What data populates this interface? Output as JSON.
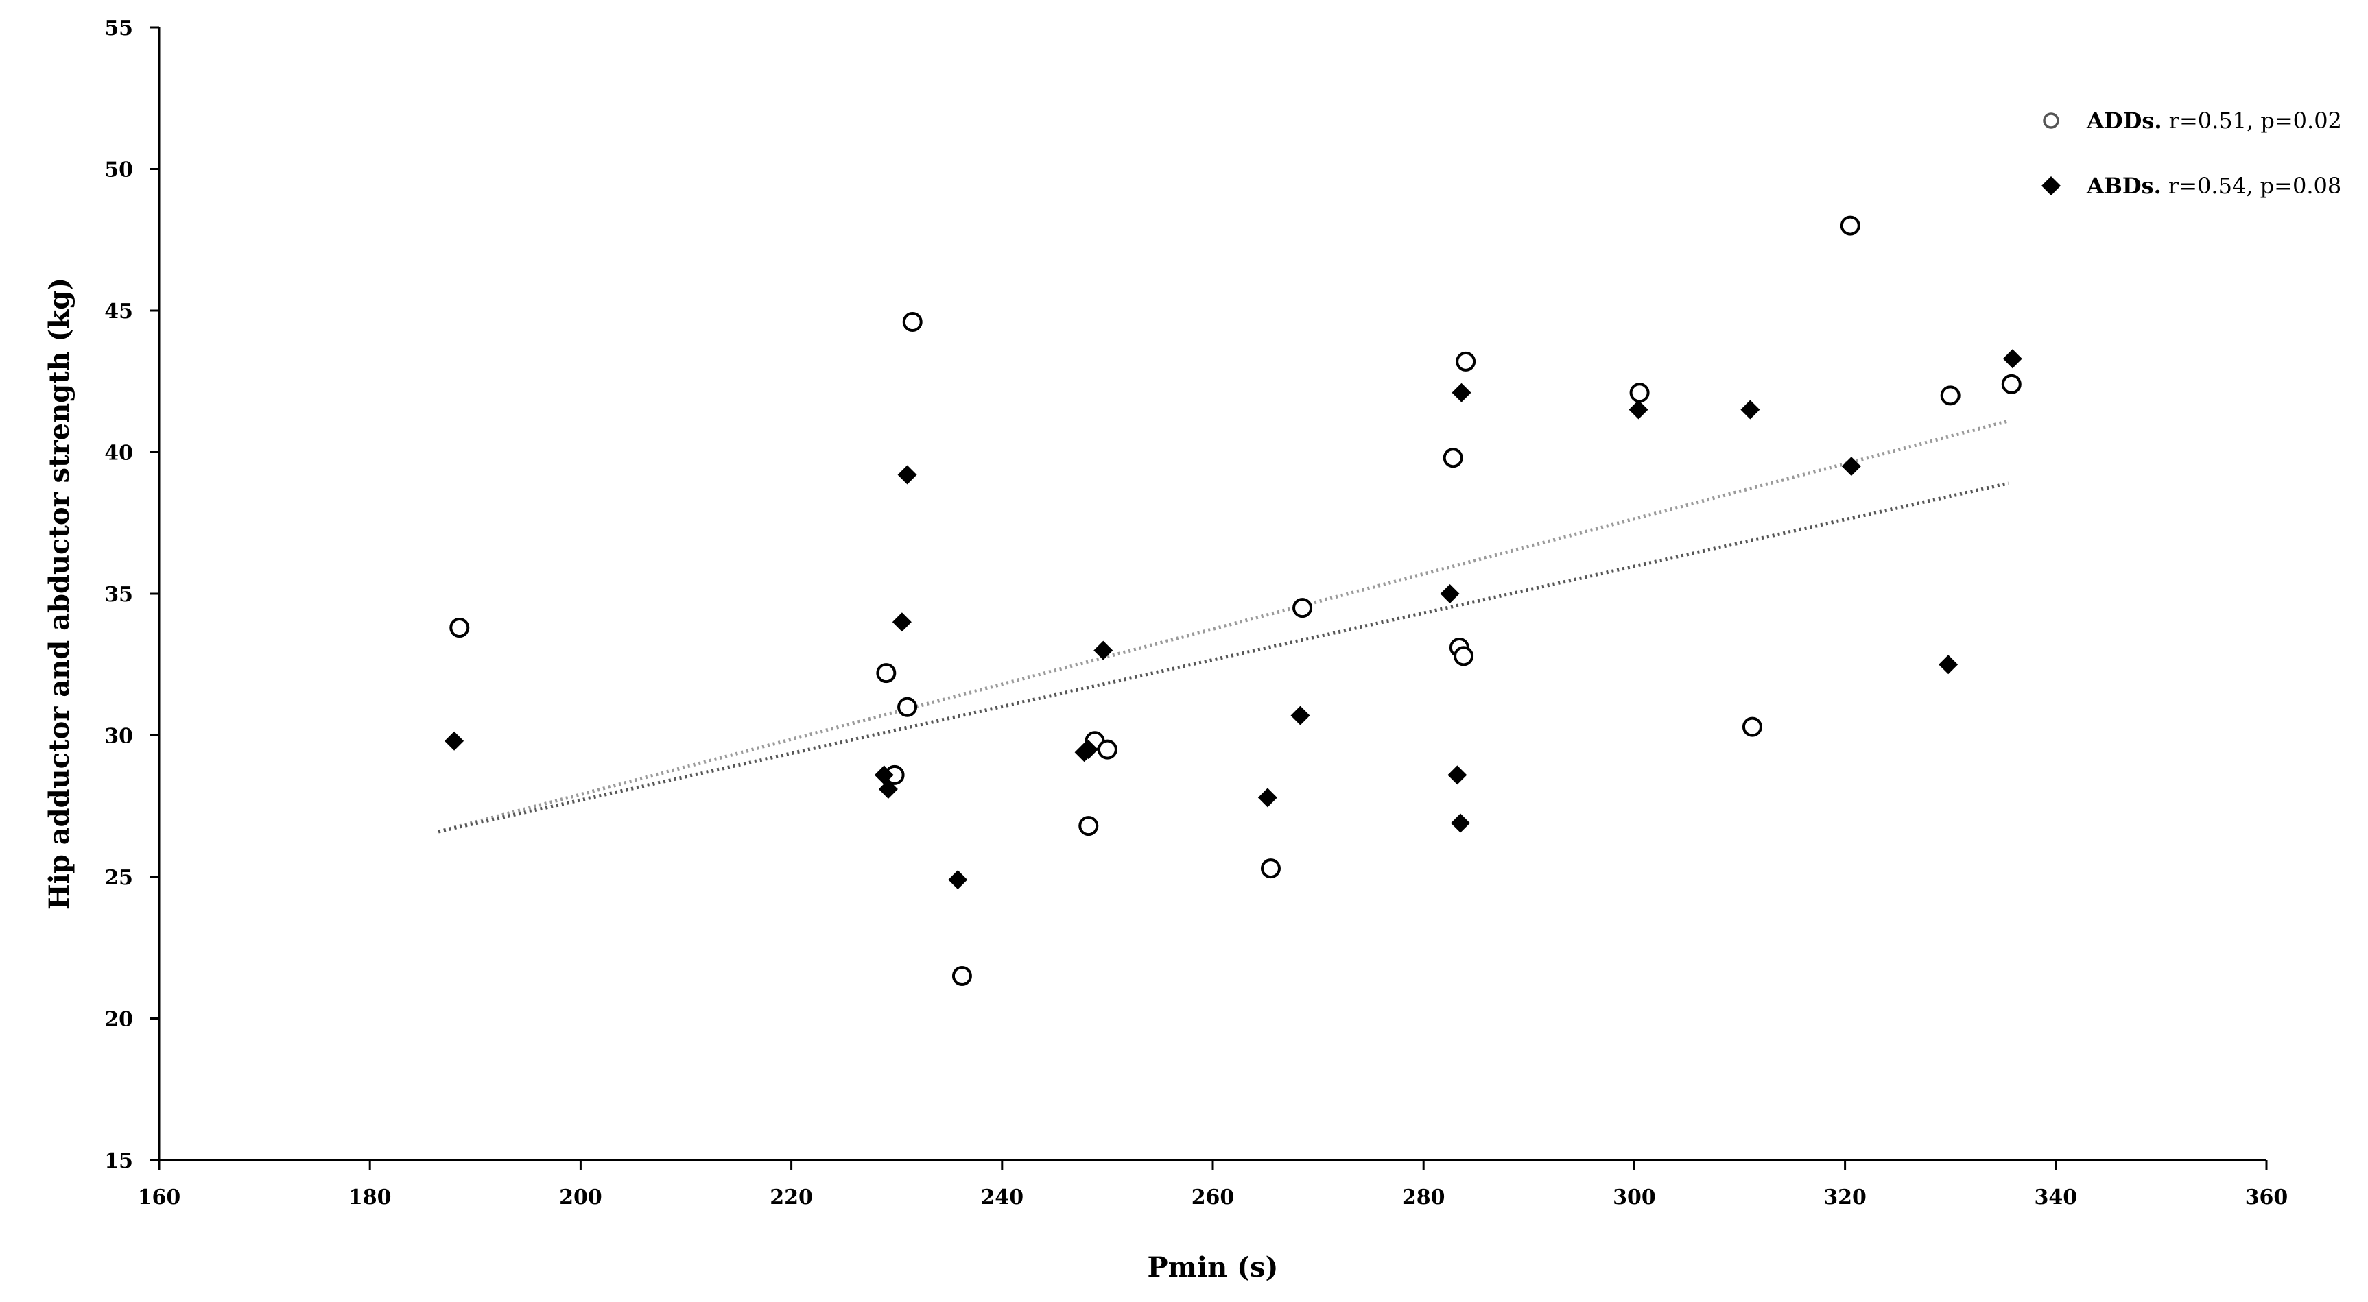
{
  "chart_data": {
    "type": "scatter",
    "title": "",
    "xlabel": "Pmin (s)",
    "ylabel": "Hip adductor and abductor strength (kg)",
    "xlim": [
      160,
      360
    ],
    "ylim": [
      15,
      55
    ],
    "xticks": [
      160,
      180,
      200,
      220,
      240,
      260,
      280,
      300,
      320,
      340,
      360
    ],
    "yticks": [
      15,
      20,
      25,
      30,
      35,
      40,
      45,
      50,
      55
    ],
    "grid": false,
    "legend_position": "top-right",
    "series": [
      {
        "name": "ADDs.",
        "stats": "r=0.51, p=0.02",
        "marker": "open-circle",
        "color": "#000000",
        "points": [
          {
            "x": 188.5,
            "y": 33.8
          },
          {
            "x": 229.0,
            "y": 32.2
          },
          {
            "x": 229.8,
            "y": 28.6
          },
          {
            "x": 231.0,
            "y": 31.0
          },
          {
            "x": 231.5,
            "y": 44.6
          },
          {
            "x": 236.2,
            "y": 21.5
          },
          {
            "x": 248.2,
            "y": 26.8
          },
          {
            "x": 248.8,
            "y": 29.8
          },
          {
            "x": 250.0,
            "y": 29.5
          },
          {
            "x": 265.5,
            "y": 25.3
          },
          {
            "x": 268.5,
            "y": 34.5
          },
          {
            "x": 282.8,
            "y": 39.8
          },
          {
            "x": 283.4,
            "y": 33.1
          },
          {
            "x": 283.8,
            "y": 32.8
          },
          {
            "x": 284.0,
            "y": 43.2
          },
          {
            "x": 300.5,
            "y": 42.1
          },
          {
            "x": 311.2,
            "y": 30.3
          },
          {
            "x": 320.5,
            "y": 48.0
          },
          {
            "x": 330.0,
            "y": 42.0
          },
          {
            "x": 335.8,
            "y": 42.4
          }
        ],
        "trendline": {
          "x": [
            186.5,
            335.5
          ],
          "y": [
            26.6,
            41.1
          ],
          "color": "#9a9a9a"
        }
      },
      {
        "name": "ABDs.",
        "stats": "r=0.54, p=0.08",
        "marker": "filled-diamond",
        "color": "#000000",
        "points": [
          {
            "x": 188.0,
            "y": 29.8
          },
          {
            "x": 228.8,
            "y": 28.6
          },
          {
            "x": 229.2,
            "y": 28.1
          },
          {
            "x": 230.5,
            "y": 34.0
          },
          {
            "x": 231.0,
            "y": 39.2
          },
          {
            "x": 235.8,
            "y": 24.9
          },
          {
            "x": 247.8,
            "y": 29.4
          },
          {
            "x": 248.2,
            "y": 29.5
          },
          {
            "x": 249.6,
            "y": 33.0
          },
          {
            "x": 265.2,
            "y": 27.8
          },
          {
            "x": 268.3,
            "y": 30.7
          },
          {
            "x": 282.5,
            "y": 35.0
          },
          {
            "x": 283.2,
            "y": 28.6
          },
          {
            "x": 283.5,
            "y": 26.9
          },
          {
            "x": 283.6,
            "y": 42.1
          },
          {
            "x": 300.4,
            "y": 41.5
          },
          {
            "x": 311.0,
            "y": 41.5
          },
          {
            "x": 320.6,
            "y": 39.5
          },
          {
            "x": 329.8,
            "y": 32.5
          },
          {
            "x": 335.9,
            "y": 43.3
          }
        ],
        "trendline": {
          "x": [
            186.5,
            335.5
          ],
          "y": [
            26.6,
            38.9
          ],
          "color": "#555555"
        }
      }
    ]
  }
}
